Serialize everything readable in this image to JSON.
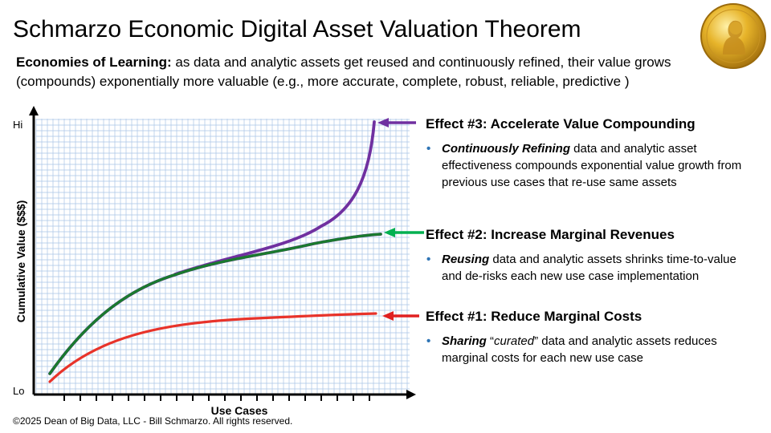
{
  "title": "Schmarzo Economic Digital Asset Valuation Theorem",
  "subtitle": {
    "lead": "Economies of Learning:",
    "text": " as data and analytic assets get reused and continuously refined, their value grows (compounds) exponentially more valuable (e.g., more accurate, complete, robust, reliable, predictive )"
  },
  "chart": {
    "y_label": "Cumulative Value ($$$)",
    "x_label": "Use Cases",
    "y_hi": "Hi",
    "y_lo": "Lo"
  },
  "effects": [
    {
      "title": "Effect #3: Accelerate Value Compounding",
      "bullet_dot": "•",
      "keyword": "Continuously Refining",
      "mid": "",
      "quoted": "",
      "rest": " data and analytic asset effectiveness compounds exponential value growth from previous use cases that re-use same assets",
      "color": "#7030a0"
    },
    {
      "title": "Effect #2: Increase Marginal Revenues",
      "bullet_dot": "•",
      "keyword": "Reusing",
      "mid": "",
      "quoted": "",
      "rest": " data and analytic assets shrinks time-to-value and de-risks each new use case implementation",
      "color": "#00b050"
    },
    {
      "title": "Effect #1: Reduce Marginal Costs",
      "bullet_dot": "•",
      "keyword": "Sharing",
      "mid": " “",
      "quoted": "curated",
      "rest": "” data and analytic assets reduces marginal costs for each new use case",
      "color": "#e02020"
    }
  ],
  "footer": "©2025 Dean of Big Data, LLC - Bill Schmarzo. All rights reserved.",
  "icons": {
    "medal": "nobel-medal-icon"
  },
  "colors": {
    "grid": "#a9c4e6",
    "purple": "#7030a0",
    "green": "#1a7a2e",
    "red": "#e8332a",
    "bullet": "#2e74b5"
  }
}
